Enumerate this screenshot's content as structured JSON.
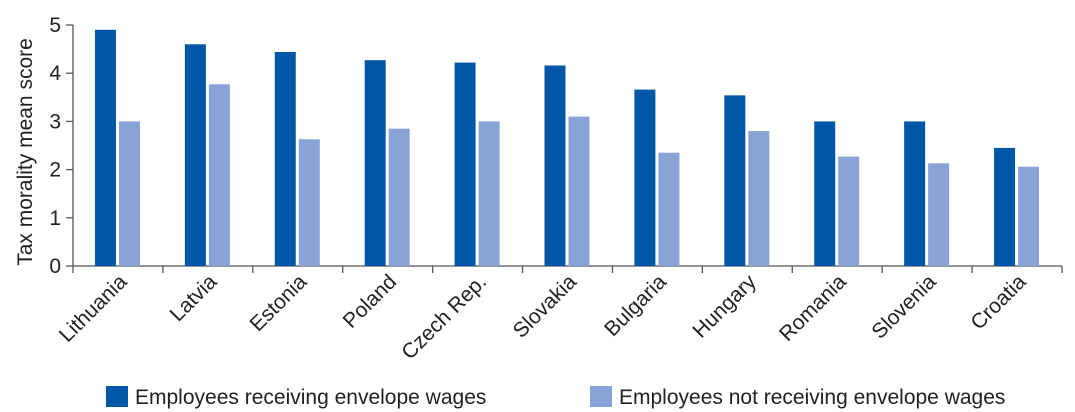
{
  "chart_data": {
    "type": "bar",
    "title": "",
    "xlabel": "",
    "ylabel": "Tax morality mean score",
    "ylim": [
      0,
      5
    ],
    "yticks": [
      "0",
      "1",
      "2",
      "3",
      "4",
      "5"
    ],
    "grid": false,
    "legend_position": "bottom",
    "categories": [
      "Lithuania",
      "Latvia",
      "Estonia",
      "Poland",
      "Czech Rep.",
      "Slovakia",
      "Bulgaria",
      "Hungary",
      "Romania",
      "Slovenia",
      "Croatia"
    ],
    "series": [
      {
        "name": "Employees receiving envelope wages",
        "color": "#0057a8",
        "values": [
          4.9,
          4.6,
          4.44,
          4.27,
          4.22,
          4.16,
          3.66,
          3.54,
          3.0,
          3.0,
          2.45
        ]
      },
      {
        "name": "Employees not receiving envelope wages",
        "color": "#8aa3d6",
        "values": [
          3.0,
          3.77,
          2.63,
          2.85,
          3.0,
          3.1,
          2.35,
          2.8,
          2.27,
          2.13,
          2.06
        ]
      }
    ]
  }
}
